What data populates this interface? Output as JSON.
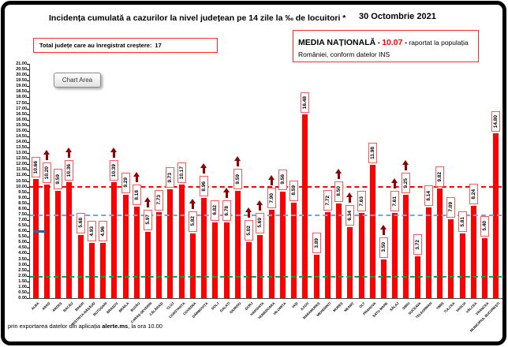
{
  "header": {
    "title": "Incidența cumulată a cazurilor la nivel județean pe 14 zile la ‰ de locuitori *",
    "date": "30 Octombrie 2021"
  },
  "growth_box": {
    "text": "Total județe care au înregistrat creștere:",
    "count": "17"
  },
  "national_average_box": {
    "label": "MEDIA NAȚIONALĂ",
    "dash1": " - ",
    "value": "10.07",
    "dash2": " - ",
    "text_after": " raportat la populația",
    "line2": "României, conform datelor INS"
  },
  "chart_area_tooltip": {
    "label": "Chart Area"
  },
  "footer": {
    "text_before": "prin exportarea datelor din aplicația ",
    "app_name": "alerte.ms",
    "text_after": ", la ora 10.00"
  },
  "chart_data": {
    "type": "bar",
    "title": "Incidența cumulată a cazurilor la nivel județean pe 14 zile la ‰ de locuitori",
    "date": "30 Octombrie 2021",
    "categories": [
      "ALBA",
      "ARAD",
      "ARGEȘ",
      "BACĂU",
      "BIHOR",
      "BISTRIȚA-NĂSĂUD",
      "BOTOȘANI",
      "BRAȘOV",
      "BRĂILA",
      "BUZĂU",
      "CARAȘ-SEVERIN",
      "CĂLĂRAȘI",
      "CLUJ",
      "CONSTANȚA",
      "COVASNA",
      "DÂMBOVIȚA",
      "DOLJ",
      "GALAȚI",
      "GIURGIU",
      "GORJ",
      "HARGHITA",
      "HUNEDOARA",
      "IALOMIȚA",
      "IAȘI",
      "ILFOV",
      "MARAMUREȘ",
      "MEHEDINȚI",
      "MUREȘ",
      "NEAMȚ",
      "OLT",
      "PRAHOVA",
      "SATU MARE",
      "SĂLAJ",
      "SIBIU",
      "SUCEAVA",
      "TELEORMAN",
      "TIMIȘ",
      "TULCEA",
      "VASLUI",
      "VÂLCEA",
      "VRANCEA",
      "MUNICIPIUL BUCUREȘTI"
    ],
    "values": [
      10.66,
      10.2,
      9.59,
      10.36,
      5.68,
      4.93,
      4.96,
      10.39,
      9.29,
      8.18,
      5.97,
      7.73,
      9.73,
      10.17,
      5.82,
      8.96,
      6.82,
      6.78,
      9.59,
      5.02,
      5.69,
      7.9,
      9.56,
      8.59,
      16.48,
      3.89,
      7.72,
      8.5,
      6.34,
      7.63,
      11.98,
      3.5,
      7.61,
      9.25,
      3.72,
      8.14,
      9.82,
      7.09,
      5.81,
      8.24,
      5.4,
      14.8
    ],
    "increase_arrow": [
      false,
      true,
      false,
      true,
      false,
      false,
      false,
      true,
      false,
      true,
      true,
      false,
      false,
      false,
      true,
      true,
      false,
      true,
      true,
      true,
      true,
      true,
      false,
      false,
      false,
      false,
      false,
      true,
      true,
      false,
      false,
      true,
      true,
      true,
      false,
      false,
      false,
      false,
      false,
      false,
      false,
      false
    ],
    "increase_total": 17,
    "ylim": [
      0,
      21
    ],
    "ytick_step": 0.5,
    "grid": false,
    "legend": false,
    "bar_color": "#FE0000",
    "label_box": {
      "border": "#FF5A5A",
      "background": "#FFFFFF",
      "text": "#000000"
    },
    "arrow_color": "#8F0000",
    "reference_lines": [
      {
        "name": "media-nationala",
        "value": 10.07,
        "color": "#FF0000",
        "style": "dashed"
      },
      {
        "name": "prag-mediu",
        "value": 7.5,
        "color": "#6FA8DC",
        "style": "dashed"
      },
      {
        "name": "prag-scazut",
        "value": 2.0,
        "color": "#00A651",
        "style": "dashed"
      }
    ],
    "extra_marker": {
      "value": 6.0,
      "color": "#2E5FA3",
      "note": "short blue dash near left edge"
    }
  }
}
